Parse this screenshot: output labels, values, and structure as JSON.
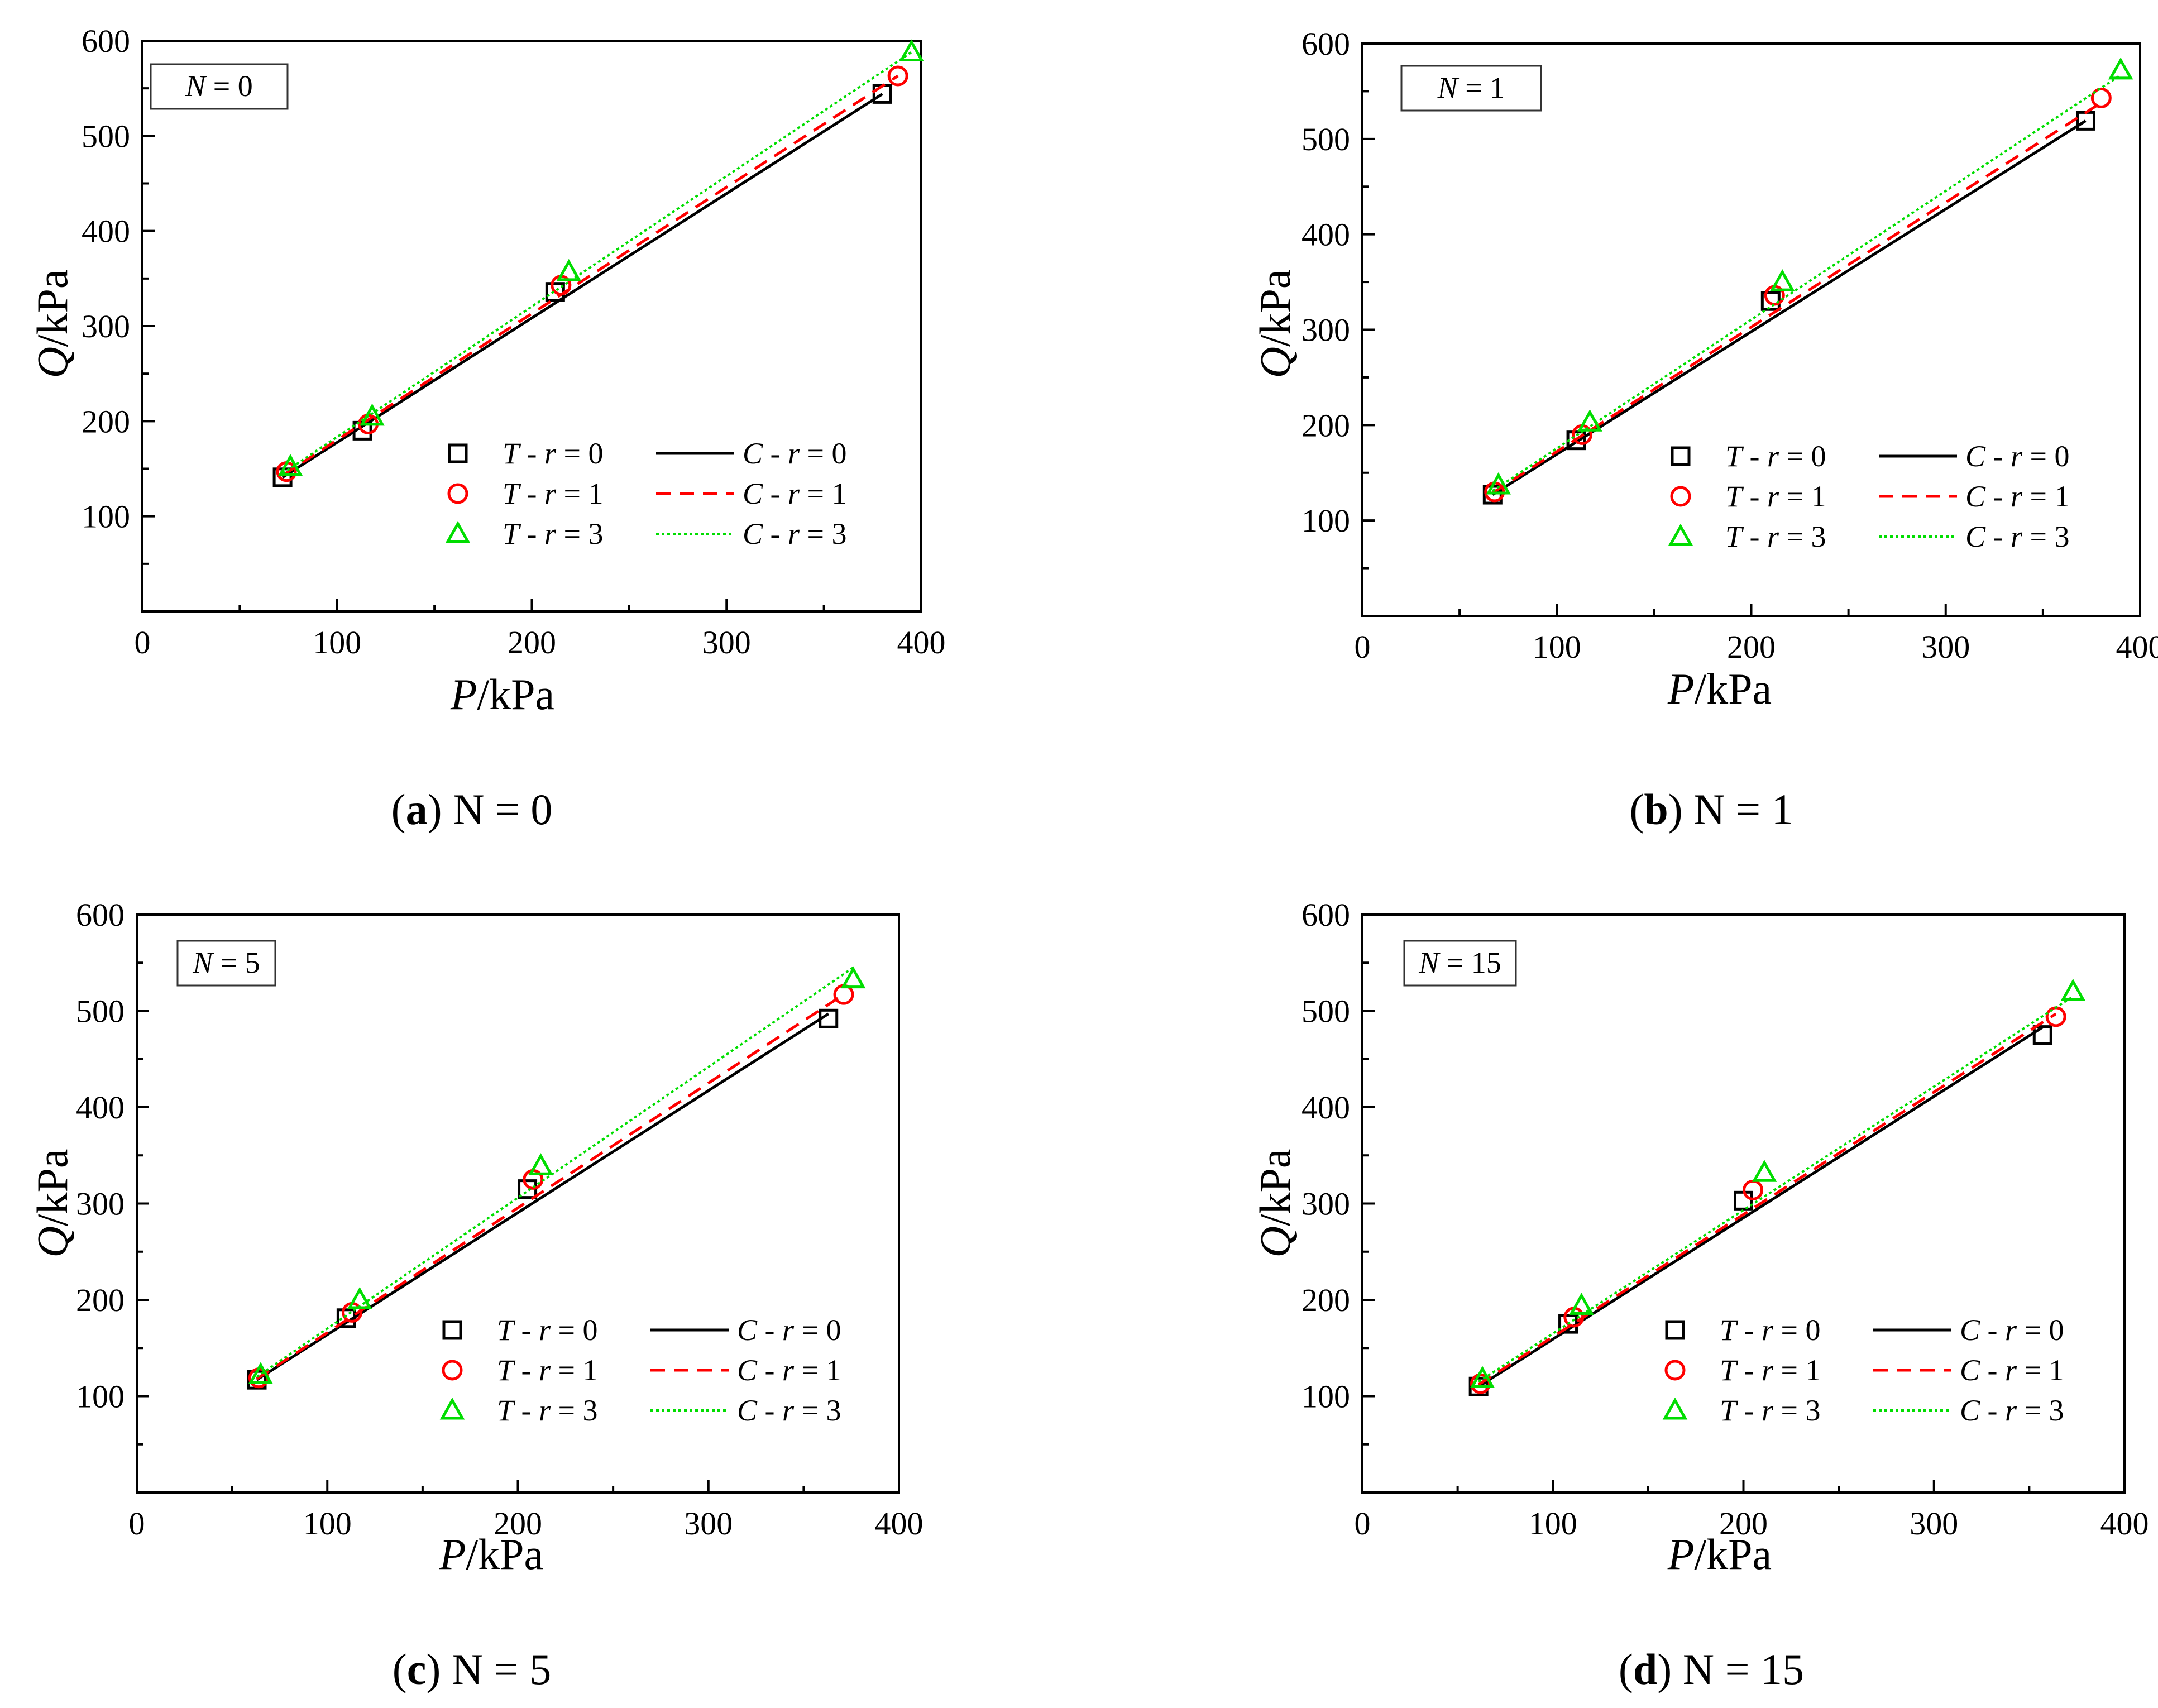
{
  "figure": {
    "x_label": {
      "var": "P",
      "unit": "/kPa"
    },
    "y_label": {
      "var": "Q",
      "unit": "/kPa"
    },
    "legend": {
      "placement": "lower-right",
      "rows": [
        {
          "t_text": "T - r = 0",
          "c_text": "C - r = 0",
          "color": "#000000",
          "marker": "square",
          "line": "solid"
        },
        {
          "t_text": "T - r = 1",
          "c_text": "C - r = 1",
          "color": "#ff0000",
          "marker": "circle",
          "line": "dashed"
        },
        {
          "t_text": "T - r = 3",
          "c_text": "C - r = 3",
          "color": "#00dd00",
          "marker": "triangle",
          "line": "dotted"
        }
      ]
    }
  },
  "chart_data": [
    {
      "type": "scatter",
      "panel": "a",
      "caption_letter": "a",
      "caption_text": " N = 0",
      "box_label": "N = 0",
      "xlim": [
        0,
        400
      ],
      "ylim": [
        0,
        600
      ],
      "xticks": [
        0,
        100,
        200,
        300,
        400
      ],
      "yticks": [
        100,
        200,
        300,
        400,
        500,
        600
      ],
      "series": [
        {
          "name": "r = 0",
          "color": "#000000",
          "marker": "square",
          "line": "solid",
          "points": [
            [
              72,
              141
            ],
            [
              113,
              190
            ],
            [
              212,
              336
            ],
            [
              380,
              544
            ]
          ],
          "line_points": [
            [
              72,
              141
            ],
            [
              380,
              544
            ]
          ]
        },
        {
          "name": "r = 1",
          "color": "#ff0000",
          "marker": "circle",
          "line": "dashed",
          "points": [
            [
              74,
              147
            ],
            [
              116,
              197
            ],
            [
              215,
              343
            ],
            [
              388,
              563
            ]
          ],
          "line_points": [
            [
              72,
              143
            ],
            [
              388,
              563
            ]
          ]
        },
        {
          "name": "r = 3",
          "color": "#00dd00",
          "marker": "triangle",
          "line": "dotted",
          "points": [
            [
              76,
              152
            ],
            [
              118,
              205
            ],
            [
              219,
              357
            ],
            [
              395,
              588
            ]
          ],
          "line_points": [
            [
              72,
              145
            ],
            [
              395,
              588
            ]
          ]
        }
      ]
    },
    {
      "type": "scatter",
      "panel": "b",
      "caption_letter": "b",
      "caption_text": " N = 1",
      "box_label": "N = 1",
      "xlim": [
        0,
        400
      ],
      "ylim": [
        0,
        600
      ],
      "xticks": [
        0,
        100,
        200,
        300,
        400
      ],
      "yticks": [
        100,
        200,
        300,
        400,
        500,
        600
      ],
      "series": [
        {
          "name": "r = 0",
          "color": "#000000",
          "marker": "square",
          "line": "solid",
          "points": [
            [
              67,
              127
            ],
            [
              110,
              184
            ],
            [
              210,
              330
            ],
            [
              372,
              519
            ]
          ],
          "line_points": [
            [
              67,
              127
            ],
            [
              372,
              519
            ]
          ]
        },
        {
          "name": "r = 1",
          "color": "#ff0000",
          "marker": "circle",
          "line": "dashed",
          "points": [
            [
              68,
              130
            ],
            [
              113,
              190
            ],
            [
              212,
              336
            ],
            [
              380,
              543
            ]
          ],
          "line_points": [
            [
              67,
              129
            ],
            [
              380,
              538
            ]
          ]
        },
        {
          "name": "r = 3",
          "color": "#00dd00",
          "marker": "triangle",
          "line": "dotted",
          "points": [
            [
              70,
              137
            ],
            [
              117,
              203
            ],
            [
              216,
              350
            ],
            [
              390,
              572
            ]
          ],
          "line_points": [
            [
              67,
              131
            ],
            [
              390,
              567
            ]
          ]
        }
      ]
    },
    {
      "type": "scatter",
      "panel": "c",
      "caption_letter": "c",
      "caption_text": " N = 5",
      "box_label": "N = 5",
      "xlim": [
        0,
        400
      ],
      "ylim": [
        0,
        600
      ],
      "xticks": [
        0,
        100,
        200,
        300,
        400
      ],
      "yticks": [
        100,
        200,
        300,
        400,
        500,
        600
      ],
      "series": [
        {
          "name": "r = 0",
          "color": "#000000",
          "marker": "square",
          "line": "solid",
          "points": [
            [
              63,
              117
            ],
            [
              110,
              181
            ],
            [
              205,
              315
            ],
            [
              363,
              492
            ]
          ],
          "line_points": [
            [
              63,
              117
            ],
            [
              363,
              497
            ]
          ]
        },
        {
          "name": "r = 1",
          "color": "#ff0000",
          "marker": "circle",
          "line": "dashed",
          "points": [
            [
              64,
              119
            ],
            [
              113,
              187
            ],
            [
              208,
              325
            ],
            [
              371,
              517
            ]
          ],
          "line_points": [
            [
              63,
              118
            ],
            [
              371,
              517
            ]
          ]
        },
        {
          "name": "r = 3",
          "color": "#00dd00",
          "marker": "triangle",
          "line": "dotted",
          "points": [
            [
              65,
              122
            ],
            [
              117,
              200
            ],
            [
              212,
              339
            ],
            [
              376,
              533
            ]
          ],
          "line_points": [
            [
              63,
              120
            ],
            [
              376,
              545
            ]
          ]
        }
      ]
    },
    {
      "type": "scatter",
      "panel": "d",
      "caption_letter": "d",
      "caption_text": " N = 15",
      "box_label": "N = 15",
      "xlim": [
        0,
        400
      ],
      "ylim": [
        0,
        600
      ],
      "xticks": [
        0,
        100,
        200,
        300,
        400
      ],
      "yticks": [
        100,
        200,
        300,
        400,
        500,
        600
      ],
      "series": [
        {
          "name": "r = 0",
          "color": "#000000",
          "marker": "square",
          "line": "solid",
          "points": [
            [
              61,
              110
            ],
            [
              108,
              175
            ],
            [
              200,
              303
            ],
            [
              357,
              475
            ]
          ],
          "line_points": [
            [
              61,
              110
            ],
            [
              357,
              483
            ]
          ]
        },
        {
          "name": "r = 1",
          "color": "#ff0000",
          "marker": "circle",
          "line": "dashed",
          "points": [
            [
              62,
              113
            ],
            [
              111,
              182
            ],
            [
              205,
              314
            ],
            [
              364,
              494
            ]
          ],
          "line_points": [
            [
              61,
              112
            ],
            [
              364,
              497
            ]
          ]
        },
        {
          "name": "r = 3",
          "color": "#00dd00",
          "marker": "triangle",
          "line": "dotted",
          "points": [
            [
              63,
              118
            ],
            [
              115,
              194
            ],
            [
              211,
              332
            ],
            [
              373,
              520
            ]
          ],
          "line_points": [
            [
              61,
              115
            ],
            [
              373,
              515
            ]
          ]
        }
      ]
    }
  ]
}
